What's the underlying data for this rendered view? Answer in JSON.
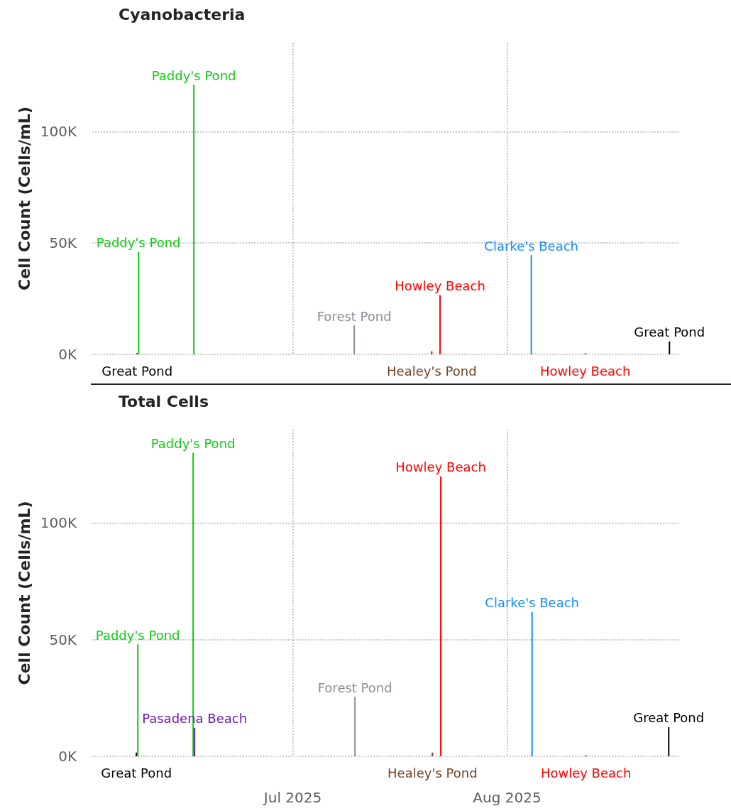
{
  "chart_data": [
    {
      "type": "bar",
      "title": "Cyanobacteria",
      "ylabel": "Cell Count (Cells/mL)",
      "xlim": [
        "2025-06-02",
        "2025-08-26"
      ],
      "xticks": [
        {
          "value": "2025-07-01",
          "label": null
        },
        {
          "value": "2025-08-01",
          "label": null
        }
      ],
      "ylim": [
        0,
        140000
      ],
      "yticks": [
        {
          "value": 0,
          "label": "0K"
        },
        {
          "value": 50000,
          "label": "50K"
        },
        {
          "value": 100000,
          "label": "100K"
        }
      ],
      "grid": true,
      "tick_labels": "y",
      "series": [
        {
          "name": "Great Pond",
          "color": "#000000",
          "x": [
            "2025-06-09",
            "2025-08-25"
          ],
          "values": [
            500,
            5800
          ]
        },
        {
          "name": "Paddy's Pond",
          "color": "#11cc11",
          "x": [
            "2025-06-09",
            "2025-06-17"
          ],
          "values": [
            46000,
            121000
          ]
        },
        {
          "name": "Forest Pond",
          "color": "#8c8c96",
          "x": [
            "2025-07-10"
          ],
          "values": [
            13000
          ]
        },
        {
          "name": "Healey's Pond",
          "color": "#744124",
          "x": [
            "2025-07-21"
          ],
          "values": [
            1400
          ]
        },
        {
          "name": "Howley Beach",
          "color": "#ff0000",
          "x": [
            "2025-07-22",
            "2025-08-12"
          ],
          "values": [
            26600,
            500
          ]
        },
        {
          "name": "Clarke's Beach",
          "color": "#118dff",
          "x": [
            "2025-08-04"
          ],
          "values": [
            44600
          ]
        }
      ]
    },
    {
      "type": "bar",
      "title": "Total Cells",
      "ylabel": "Cell Count (Cells/mL)",
      "xlim": [
        "2025-06-02",
        "2025-08-26"
      ],
      "xticks": [
        {
          "value": "2025-07-01",
          "label": "Jul 2025"
        },
        {
          "value": "2025-08-01",
          "label": "Aug 2025"
        }
      ],
      "ylim": [
        0,
        140000
      ],
      "yticks": [
        {
          "value": 0,
          "label": "0K"
        },
        {
          "value": 50000,
          "label": "50K"
        },
        {
          "value": 100000,
          "label": "100K"
        }
      ],
      "grid": true,
      "series": [
        {
          "name": "Great Pond",
          "color": "#000000",
          "x": [
            "2025-06-09",
            "2025-08-25"
          ],
          "values": [
            1600,
            12500
          ]
        },
        {
          "name": "Paddy's Pond",
          "color": "#11cc11",
          "x": [
            "2025-06-09",
            "2025-06-17"
          ],
          "values": [
            48000,
            130000
          ]
        },
        {
          "name": "Pasadena Beach",
          "color": "#6a1aa8",
          "x": [
            "2025-06-17"
          ],
          "values": [
            12200
          ]
        },
        {
          "name": "Forest Pond",
          "color": "#8c8c96",
          "x": [
            "2025-07-10"
          ],
          "values": [
            25500
          ]
        },
        {
          "name": "Healey's Pond",
          "color": "#744124",
          "x": [
            "2025-07-21"
          ],
          "values": [
            1600
          ]
        },
        {
          "name": "Howley Beach",
          "color": "#ff0000",
          "x": [
            "2025-07-22",
            "2025-08-12"
          ],
          "values": [
            120000,
            500
          ]
        },
        {
          "name": "Clarke's Beach",
          "color": "#118dff",
          "x": [
            "2025-08-04"
          ],
          "values": [
            61800
          ]
        }
      ]
    }
  ]
}
